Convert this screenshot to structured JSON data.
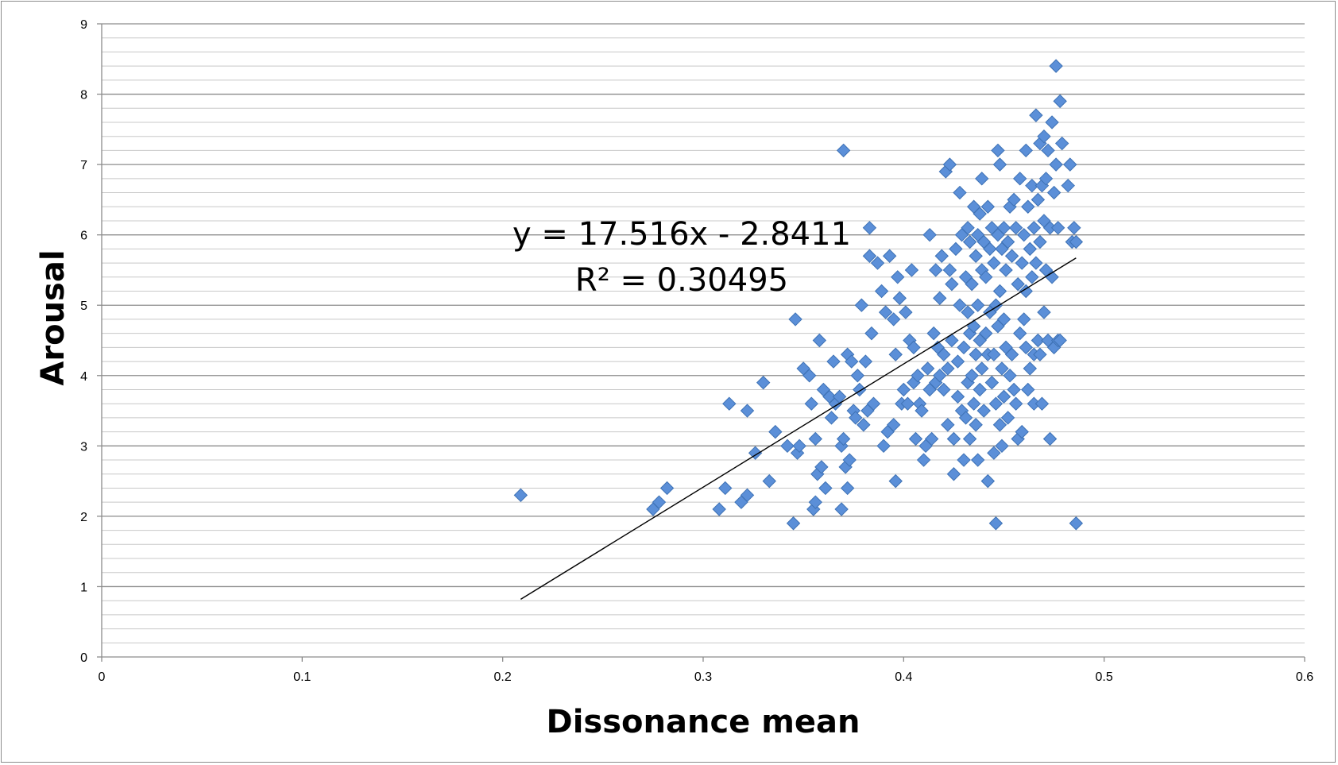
{
  "chart_data": {
    "type": "scatter",
    "xlabel": "Dissonance mean",
    "ylabel": "Arousal",
    "xlim": [
      0,
      0.6
    ],
    "ylim": [
      0,
      9
    ],
    "x_ticks": [
      "0",
      "0.1",
      "0.2",
      "0.3",
      "0.4",
      "0.5",
      "0.6"
    ],
    "y_ticks": [
      "0",
      "1",
      "2",
      "3",
      "4",
      "5",
      "6",
      "7",
      "8",
      "9"
    ],
    "grid": {
      "major_y": true,
      "minor_y": true,
      "minor_step": 0.2
    },
    "legend": "none",
    "marker_color": "#5b8fd8",
    "marker_edge": "#3e72b5",
    "trendline": {
      "slope": 17.516,
      "intercept": -2.8411,
      "x_range": [
        0.209,
        0.486
      ],
      "equation": "y = 17.516x - 2.8411",
      "r_squared_text": "R² = 0.30495"
    },
    "series": [
      {
        "points": [
          [
            0.209,
            2.3
          ],
          [
            0.275,
            2.1
          ],
          [
            0.278,
            2.2
          ],
          [
            0.282,
            2.4
          ],
          [
            0.308,
            2.1
          ],
          [
            0.311,
            2.4
          ],
          [
            0.313,
            3.6
          ],
          [
            0.319,
            2.2
          ],
          [
            0.322,
            2.3
          ],
          [
            0.322,
            3.5
          ],
          [
            0.326,
            2.9
          ],
          [
            0.33,
            3.9
          ],
          [
            0.333,
            2.5
          ],
          [
            0.336,
            3.2
          ],
          [
            0.342,
            3.0
          ],
          [
            0.345,
            1.9
          ],
          [
            0.346,
            4.8
          ],
          [
            0.347,
            2.9
          ],
          [
            0.348,
            3.0
          ],
          [
            0.35,
            4.1
          ],
          [
            0.353,
            4.0
          ],
          [
            0.354,
            3.6
          ],
          [
            0.355,
            2.1
          ],
          [
            0.356,
            2.2
          ],
          [
            0.356,
            3.1
          ],
          [
            0.357,
            2.6
          ],
          [
            0.358,
            4.5
          ],
          [
            0.359,
            2.7
          ],
          [
            0.36,
            3.8
          ],
          [
            0.361,
            2.4
          ],
          [
            0.363,
            3.7
          ],
          [
            0.364,
            3.4
          ],
          [
            0.365,
            4.2
          ],
          [
            0.366,
            3.6
          ],
          [
            0.368,
            3.7
          ],
          [
            0.369,
            2.1
          ],
          [
            0.369,
            3.0
          ],
          [
            0.37,
            7.2
          ],
          [
            0.37,
            3.1
          ],
          [
            0.371,
            2.7
          ],
          [
            0.372,
            2.4
          ],
          [
            0.372,
            4.3
          ],
          [
            0.373,
            2.8
          ],
          [
            0.374,
            4.2
          ],
          [
            0.375,
            3.5
          ],
          [
            0.376,
            3.4
          ],
          [
            0.377,
            4.0
          ],
          [
            0.378,
            3.8
          ],
          [
            0.379,
            5.0
          ],
          [
            0.38,
            3.3
          ],
          [
            0.381,
            4.2
          ],
          [
            0.382,
            3.5
          ],
          [
            0.383,
            6.1
          ],
          [
            0.383,
            5.7
          ],
          [
            0.384,
            4.6
          ],
          [
            0.385,
            3.6
          ],
          [
            0.387,
            5.6
          ],
          [
            0.389,
            5.2
          ],
          [
            0.39,
            3.0
          ],
          [
            0.391,
            4.9
          ],
          [
            0.392,
            3.2
          ],
          [
            0.393,
            5.7
          ],
          [
            0.395,
            4.8
          ],
          [
            0.395,
            3.3
          ],
          [
            0.396,
            4.3
          ],
          [
            0.396,
            2.5
          ],
          [
            0.397,
            5.4
          ],
          [
            0.398,
            5.1
          ],
          [
            0.399,
            3.6
          ],
          [
            0.4,
            3.8
          ],
          [
            0.401,
            4.9
          ],
          [
            0.402,
            3.6
          ],
          [
            0.403,
            4.5
          ],
          [
            0.404,
            5.5
          ],
          [
            0.405,
            4.4
          ],
          [
            0.405,
            3.9
          ],
          [
            0.406,
            3.1
          ],
          [
            0.407,
            4.0
          ],
          [
            0.408,
            3.6
          ],
          [
            0.409,
            3.5
          ],
          [
            0.41,
            2.8
          ],
          [
            0.411,
            3.0
          ],
          [
            0.412,
            4.1
          ],
          [
            0.413,
            6.0
          ],
          [
            0.413,
            3.8
          ],
          [
            0.414,
            3.1
          ],
          [
            0.415,
            4.6
          ],
          [
            0.416,
            5.5
          ],
          [
            0.416,
            3.9
          ],
          [
            0.417,
            4.4
          ],
          [
            0.418,
            5.1
          ],
          [
            0.418,
            4.0
          ],
          [
            0.419,
            5.7
          ],
          [
            0.42,
            4.3
          ],
          [
            0.42,
            3.8
          ],
          [
            0.421,
            6.9
          ],
          [
            0.422,
            4.1
          ],
          [
            0.422,
            3.3
          ],
          [
            0.423,
            7.0
          ],
          [
            0.423,
            5.5
          ],
          [
            0.424,
            5.3
          ],
          [
            0.424,
            4.5
          ],
          [
            0.425,
            3.1
          ],
          [
            0.425,
            2.6
          ],
          [
            0.426,
            5.8
          ],
          [
            0.427,
            4.2
          ],
          [
            0.427,
            3.7
          ],
          [
            0.428,
            6.6
          ],
          [
            0.428,
            5.0
          ],
          [
            0.429,
            6.0
          ],
          [
            0.429,
            3.5
          ],
          [
            0.43,
            2.8
          ],
          [
            0.43,
            4.4
          ],
          [
            0.431,
            5.4
          ],
          [
            0.431,
            3.4
          ],
          [
            0.432,
            6.1
          ],
          [
            0.432,
            4.9
          ],
          [
            0.432,
            3.9
          ],
          [
            0.433,
            5.9
          ],
          [
            0.433,
            4.6
          ],
          [
            0.433,
            3.1
          ],
          [
            0.434,
            5.3
          ],
          [
            0.434,
            4.0
          ],
          [
            0.435,
            6.4
          ],
          [
            0.435,
            4.7
          ],
          [
            0.435,
            3.6
          ],
          [
            0.436,
            5.7
          ],
          [
            0.436,
            4.3
          ],
          [
            0.436,
            3.3
          ],
          [
            0.437,
            6.0
          ],
          [
            0.437,
            5.0
          ],
          [
            0.437,
            2.8
          ],
          [
            0.438,
            6.3
          ],
          [
            0.438,
            4.5
          ],
          [
            0.438,
            3.8
          ],
          [
            0.439,
            6.8
          ],
          [
            0.439,
            5.5
          ],
          [
            0.439,
            4.1
          ],
          [
            0.44,
            5.9
          ],
          [
            0.44,
            3.5
          ],
          [
            0.441,
            5.4
          ],
          [
            0.441,
            4.6
          ],
          [
            0.442,
            6.4
          ],
          [
            0.442,
            4.3
          ],
          [
            0.442,
            2.5
          ],
          [
            0.443,
            5.8
          ],
          [
            0.443,
            4.9
          ],
          [
            0.444,
            6.1
          ],
          [
            0.444,
            3.9
          ],
          [
            0.445,
            5.6
          ],
          [
            0.445,
            4.3
          ],
          [
            0.445,
            2.9
          ],
          [
            0.446,
            5.0
          ],
          [
            0.446,
            3.6
          ],
          [
            0.446,
            1.9
          ],
          [
            0.447,
            7.2
          ],
          [
            0.447,
            6.0
          ],
          [
            0.447,
            4.7
          ],
          [
            0.448,
            7.0
          ],
          [
            0.448,
            5.2
          ],
          [
            0.448,
            3.3
          ],
          [
            0.449,
            5.8
          ],
          [
            0.449,
            4.1
          ],
          [
            0.449,
            3.0
          ],
          [
            0.45,
            6.1
          ],
          [
            0.45,
            4.8
          ],
          [
            0.45,
            3.7
          ],
          [
            0.451,
            5.5
          ],
          [
            0.451,
            4.4
          ],
          [
            0.452,
            5.9
          ],
          [
            0.452,
            3.4
          ],
          [
            0.453,
            6.4
          ],
          [
            0.453,
            4.0
          ],
          [
            0.454,
            5.7
          ],
          [
            0.454,
            4.3
          ],
          [
            0.455,
            6.5
          ],
          [
            0.455,
            3.8
          ],
          [
            0.456,
            6.1
          ],
          [
            0.456,
            3.6
          ],
          [
            0.457,
            5.3
          ],
          [
            0.457,
            3.1
          ],
          [
            0.458,
            6.8
          ],
          [
            0.458,
            4.6
          ],
          [
            0.459,
            5.6
          ],
          [
            0.459,
            3.2
          ],
          [
            0.46,
            6.0
          ],
          [
            0.46,
            4.8
          ],
          [
            0.461,
            7.2
          ],
          [
            0.461,
            5.2
          ],
          [
            0.461,
            4.4
          ],
          [
            0.462,
            6.4
          ],
          [
            0.462,
            3.8
          ],
          [
            0.463,
            5.8
          ],
          [
            0.463,
            4.1
          ],
          [
            0.464,
            6.7
          ],
          [
            0.464,
            5.4
          ],
          [
            0.465,
            6.1
          ],
          [
            0.465,
            4.3
          ],
          [
            0.465,
            3.6
          ],
          [
            0.466,
            7.7
          ],
          [
            0.466,
            5.6
          ],
          [
            0.467,
            6.5
          ],
          [
            0.467,
            4.5
          ],
          [
            0.468,
            7.3
          ],
          [
            0.468,
            5.9
          ],
          [
            0.468,
            4.3
          ],
          [
            0.469,
            6.7
          ],
          [
            0.469,
            3.6
          ],
          [
            0.47,
            7.4
          ],
          [
            0.47,
            6.2
          ],
          [
            0.47,
            4.9
          ],
          [
            0.471,
            6.8
          ],
          [
            0.471,
            5.5
          ],
          [
            0.472,
            7.2
          ],
          [
            0.472,
            4.5
          ],
          [
            0.473,
            6.1
          ],
          [
            0.473,
            3.1
          ],
          [
            0.474,
            7.6
          ],
          [
            0.474,
            5.4
          ],
          [
            0.475,
            6.6
          ],
          [
            0.475,
            4.4
          ],
          [
            0.476,
            8.4
          ],
          [
            0.476,
            7.0
          ],
          [
            0.477,
            6.1
          ],
          [
            0.477,
            4.5
          ],
          [
            0.478,
            7.9
          ],
          [
            0.478,
            4.5
          ],
          [
            0.479,
            7.3
          ],
          [
            0.482,
            6.7
          ],
          [
            0.483,
            7.0
          ],
          [
            0.484,
            5.9
          ],
          [
            0.485,
            6.1
          ],
          [
            0.486,
            5.9
          ],
          [
            0.486,
            1.9
          ]
        ]
      }
    ]
  }
}
